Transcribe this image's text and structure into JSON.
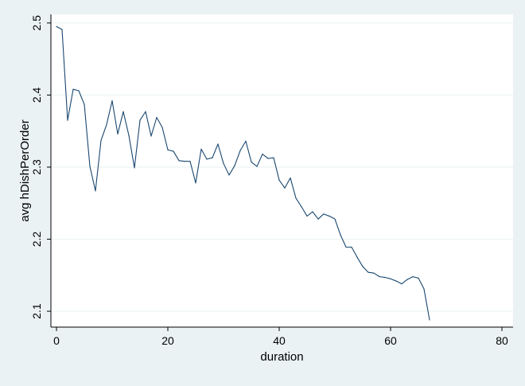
{
  "colors": {
    "outer_background": "#eaf2f3",
    "plot_background": "#ffffff",
    "gridline": "#eaf2f3",
    "line": "#1a476f"
  },
  "chart_data": {
    "type": "line",
    "title": "",
    "xlabel": "duration",
    "ylabel": "avg  hDishPerOrder",
    "xlim": [
      -1,
      82
    ],
    "ylim": [
      2.078,
      2.512
    ],
    "x_ticks": [
      0,
      20,
      40,
      60,
      80
    ],
    "x_tick_labels": [
      "0",
      "20",
      "40",
      "60",
      "80"
    ],
    "y_ticks": [
      2.1,
      2.2,
      2.3,
      2.4,
      2.5
    ],
    "y_tick_labels": [
      "2.1",
      "2.2",
      "2.3",
      "2.4",
      "2.5"
    ],
    "grid": "horizontal",
    "legend": "none",
    "series": [
      {
        "x": [
          0,
          1,
          2,
          3,
          4,
          5,
          6,
          7,
          8,
          9,
          10,
          11,
          12,
          13,
          14,
          15,
          16,
          17,
          18,
          19,
          20,
          21,
          22,
          23,
          24,
          25,
          26,
          27,
          28,
          29,
          30,
          31,
          32,
          33,
          34,
          35,
          36,
          37,
          38,
          39,
          40,
          41,
          42,
          43,
          44,
          45,
          46,
          47,
          48,
          49,
          50,
          51,
          52,
          53,
          54,
          55,
          56,
          57,
          58,
          59,
          60,
          61,
          62,
          63,
          64,
          65,
          66,
          67
        ],
        "y": [
          2.495,
          2.491,
          2.365,
          2.408,
          2.406,
          2.387,
          2.301,
          2.267,
          2.337,
          2.359,
          2.392,
          2.346,
          2.377,
          2.344,
          2.299,
          2.365,
          2.377,
          2.343,
          2.369,
          2.355,
          2.324,
          2.322,
          2.309,
          2.308,
          2.308,
          2.278,
          2.325,
          2.311,
          2.313,
          2.332,
          2.305,
          2.289,
          2.302,
          2.323,
          2.336,
          2.307,
          2.301,
          2.318,
          2.312,
          2.313,
          2.282,
          2.271,
          2.285,
          2.257,
          2.245,
          2.232,
          2.238,
          2.228,
          2.235,
          2.232,
          2.228,
          2.206,
          2.189,
          2.189,
          2.175,
          2.162,
          2.154,
          2.153,
          2.148,
          2.147,
          2.145,
          2.142,
          2.138,
          2.144,
          2.148,
          2.146,
          2.131,
          2.088
        ]
      }
    ]
  }
}
